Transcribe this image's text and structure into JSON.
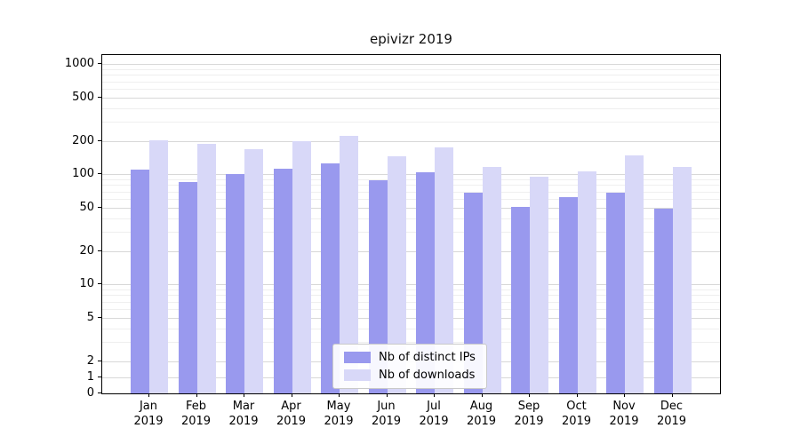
{
  "chart_data": {
    "type": "bar",
    "title": "epivizr 2019",
    "scale": "symlog",
    "grid": true,
    "legend_position": "lower center inside",
    "categories": [
      "Jan",
      "Feb",
      "Mar",
      "Apr",
      "May",
      "Jun",
      "Jul",
      "Aug",
      "Sep",
      "Oct",
      "Nov",
      "Dec"
    ],
    "category_year": "2019",
    "series": [
      {
        "name": "Nb of distinct IPs",
        "color": "#9999ee",
        "values": [
          110,
          85,
          100,
          112,
          126,
          88,
          105,
          68,
          51,
          62,
          68,
          49
        ]
      },
      {
        "name": "Nb of downloads",
        "color": "#d8d8f8",
        "values": [
          205,
          190,
          170,
          200,
          223,
          146,
          176,
          117,
          95,
          106,
          150,
          117
        ]
      }
    ],
    "y_ticks": [
      0,
      1,
      2,
      5,
      10,
      20,
      50,
      100,
      200,
      500,
      1000
    ],
    "ylim": [
      0,
      1210
    ],
    "xlabel": "",
    "ylabel": ""
  }
}
